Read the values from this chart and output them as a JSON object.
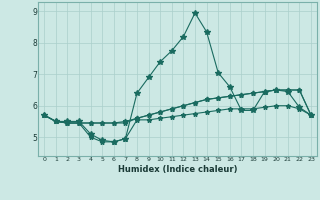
{
  "xlabel": "Humidex (Indice chaleur)",
  "ylabel": "",
  "xlim": [
    -0.5,
    23.5
  ],
  "ylim": [
    4.4,
    9.3
  ],
  "xticks": [
    0,
    1,
    2,
    3,
    4,
    5,
    6,
    7,
    8,
    9,
    10,
    11,
    12,
    13,
    14,
    15,
    16,
    17,
    18,
    19,
    20,
    21,
    22,
    23
  ],
  "yticks": [
    5,
    6,
    7,
    8,
    9
  ],
  "bg_color": "#cce8e4",
  "grid_color": "#aacfcb",
  "line_color": "#1a6b60",
  "line1": [
    5.7,
    5.5,
    5.5,
    5.5,
    5.1,
    4.9,
    4.85,
    4.95,
    6.4,
    6.9,
    7.4,
    7.75,
    8.2,
    8.95,
    8.35,
    7.05,
    6.6,
    5.85,
    5.85,
    6.45,
    6.5,
    6.45,
    5.95,
    5.7
  ],
  "line2": [
    5.7,
    5.5,
    5.45,
    5.45,
    5.45,
    5.45,
    5.45,
    5.45,
    5.6,
    5.7,
    5.8,
    5.9,
    6.0,
    6.1,
    6.2,
    6.25,
    6.3,
    6.35,
    6.4,
    6.45,
    6.5,
    6.5,
    6.5,
    5.7
  ],
  "line3": [
    5.7,
    5.5,
    5.45,
    5.45,
    5.45,
    5.45,
    5.45,
    5.5,
    5.6,
    5.7,
    5.8,
    5.9,
    6.0,
    6.1,
    6.2,
    6.25,
    6.3,
    6.35,
    6.4,
    6.45,
    6.5,
    6.5,
    6.5,
    5.7
  ],
  "line4": [
    5.7,
    5.5,
    5.45,
    5.45,
    5.0,
    4.85,
    4.85,
    4.95,
    5.55,
    5.55,
    5.6,
    5.65,
    5.7,
    5.75,
    5.8,
    5.85,
    5.9,
    5.9,
    5.9,
    5.95,
    6.0,
    6.0,
    5.9,
    5.7
  ]
}
